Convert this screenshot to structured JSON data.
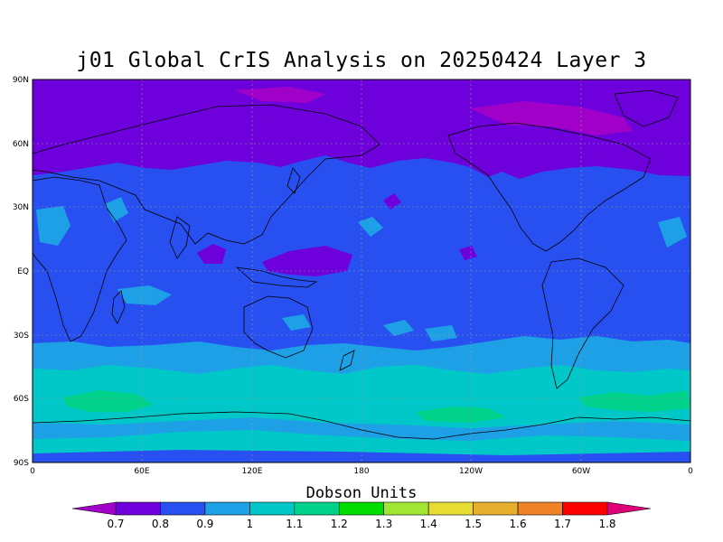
{
  "title": "j01 Global CrIS Analysis on 20250424 Layer 3",
  "legend": {
    "title": "Dobson Units",
    "levels": [
      "0.7",
      "0.8",
      "0.9",
      "1",
      "1.1",
      "1.2",
      "1.3",
      "1.4",
      "1.5",
      "1.6",
      "1.7",
      "1.8"
    ],
    "colors": [
      "#a000c8",
      "#6e00dc",
      "#2850f0",
      "#1ea0e6",
      "#00c8c8",
      "#00d28c",
      "#00dc00",
      "#a0e632",
      "#e6dc32",
      "#e6af2d",
      "#f08228",
      "#fa0000",
      "#e00078"
    ]
  },
  "axes": {
    "lat_ticks": [
      "90N",
      "60N",
      "30N",
      "EQ",
      "30S",
      "60S",
      "90S"
    ],
    "lon_ticks": [
      "0",
      "60E",
      "120E",
      "180",
      "120W",
      "60W",
      "0"
    ]
  },
  "map": {
    "region": "global",
    "projection": "equirectangular",
    "lon_range": [
      0,
      360
    ],
    "lat_range": [
      -90,
      90
    ],
    "gridlines": true,
    "coastlines": true,
    "field": "ozone"
  }
}
